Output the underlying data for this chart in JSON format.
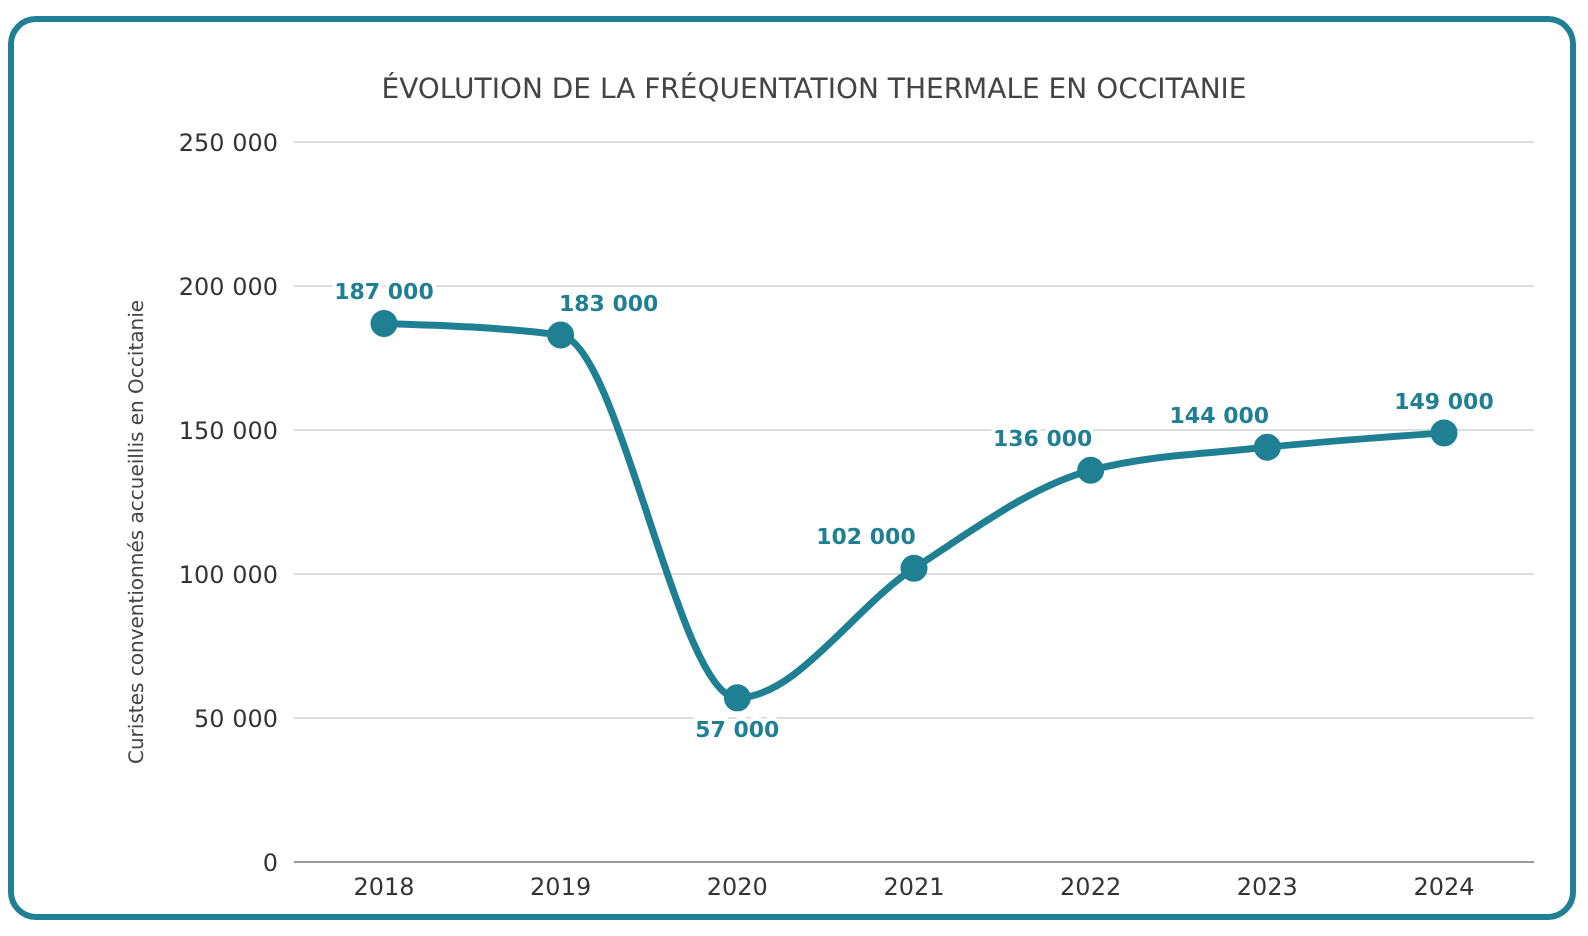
{
  "chart_data": {
    "type": "line",
    "title": "ÉVOLUTION DE LA FRÉQUENTATION THERMALE EN OCCITANIE",
    "ylabel": "Curistes conventionnés accueillis en Occitanie",
    "categories": [
      "2018",
      "2019",
      "2020",
      "2021",
      "2022",
      "2023",
      "2024"
    ],
    "series": [
      {
        "color": "#1f8094",
        "values": [
          187000,
          183000,
          57000,
          102000,
          136000,
          144000,
          149000
        ],
        "value_labels": [
          "187 000",
          "183 000",
          "57 000",
          "102 000",
          "136 000",
          "144 000",
          "149 000"
        ]
      }
    ],
    "ylim": [
      0,
      250000
    ],
    "yticks": [
      {
        "value": 0,
        "label": "0"
      },
      {
        "value": 50000,
        "label": "50 000"
      },
      {
        "value": 100000,
        "label": "100 000"
      },
      {
        "value": 150000,
        "label": "150 000"
      },
      {
        "value": 200000,
        "label": "200 000"
      },
      {
        "value": 250000,
        "label": "250 000"
      }
    ],
    "grid": "y",
    "marker": "circle",
    "line_style": "solid"
  }
}
